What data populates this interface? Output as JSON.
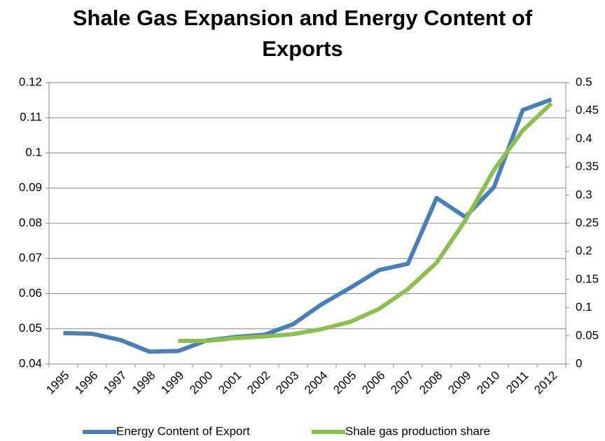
{
  "chart_data": {
    "type": "line",
    "title": "Shale Gas Expansion and Energy Content of Exports",
    "categories": [
      "1995",
      "1996",
      "1997",
      "1998",
      "1999",
      "2000",
      "2001",
      "2002",
      "2003",
      "2004",
      "2005",
      "2006",
      "2007",
      "2008",
      "2009",
      "2010",
      "2011",
      "2012"
    ],
    "series": [
      {
        "name": "Energy Content of Export",
        "color": "#4a7ebb",
        "values": [
          0.0488,
          0.0486,
          0.0468,
          0.0435,
          0.0437,
          0.0467,
          0.0477,
          0.0483,
          0.0513,
          0.057,
          0.0617,
          0.0667,
          0.0685,
          0.0872,
          0.0818,
          0.0903,
          0.1122,
          0.1152
        ]
      },
      {
        "name": "Shale gas production share",
        "color": "#8cbf4e",
        "axis": "y2",
        "values": [
          null,
          null,
          null,
          null,
          0.041,
          0.041,
          0.046,
          0.049,
          0.053,
          0.062,
          0.075,
          0.098,
          0.133,
          0.18,
          0.255,
          0.345,
          0.415,
          0.463
        ]
      }
    ],
    "ylim": [
      0.04,
      0.12
    ],
    "yticks": [
      0.04,
      0.05,
      0.06,
      0.07,
      0.08,
      0.09,
      0.1,
      0.11,
      0.12
    ],
    "y2lim": [
      0,
      0.5
    ],
    "y2ticks": [
      0,
      0.05,
      0.1,
      0.15,
      0.2,
      0.25,
      0.3,
      0.35,
      0.4,
      0.45,
      0.5
    ],
    "grid": true,
    "legend": "bottom"
  }
}
